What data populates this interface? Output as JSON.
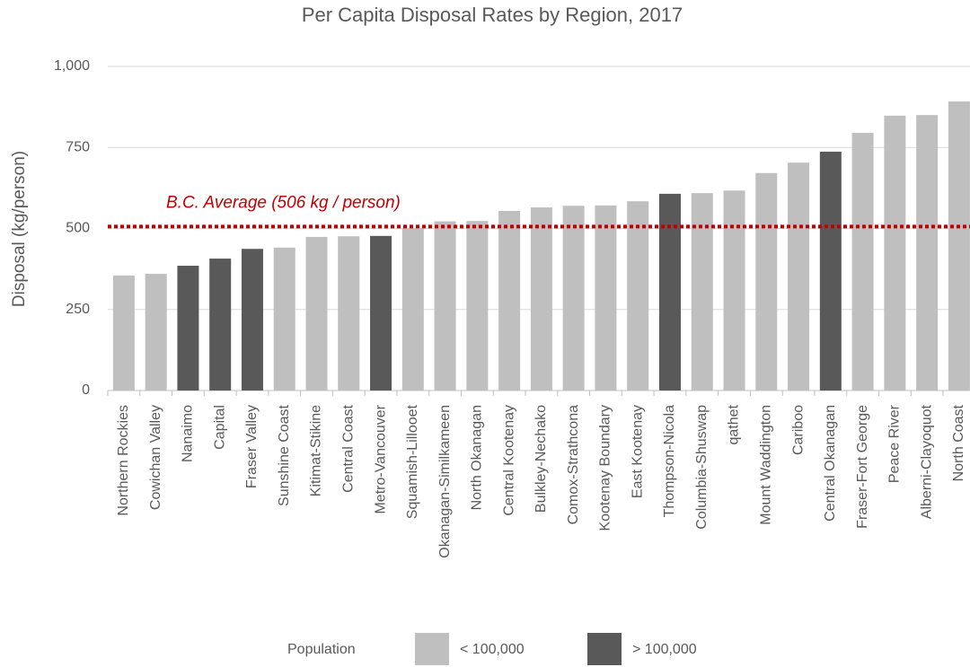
{
  "chart_data": {
    "type": "bar",
    "title": "Per Capita Disposal Rates by Region, 2017",
    "y_label": "Disposal (kg/person)",
    "legend_title": "Population",
    "categories": [
      "Northern Rockies",
      "Cowichan Valley",
      "Nanaimo",
      "Capital",
      "Fraser Valley",
      "Sunshine Coast",
      "Kitimat-Stikine",
      "Central Coast",
      "Metro-Vancouver",
      "Squamish-Lillooet",
      "Okanagan-Similkameen",
      "North Okanagan",
      "Central Kootenay",
      "Bulkley-Nechako",
      "Comox-Strathcona",
      "Kootenay Boundary",
      "East Kootenay",
      "Thompson-Nicola",
      "Columbia-Shuswap",
      "qathet",
      "Mount Waddington",
      "Cariboo",
      "Central Okanagan",
      "Fraser-Fort George",
      "Peace River",
      "Alberni-Clayoquot",
      "North Coast"
    ],
    "series": [
      {
        "name": "< 100,000",
        "color": "#bfbfbf",
        "values": [
          355,
          360,
          null,
          null,
          null,
          441,
          474,
          476,
          null,
          501,
          522,
          523,
          554,
          565,
          570,
          571,
          584,
          null,
          609,
          617,
          671,
          703,
          null,
          795,
          848,
          850,
          892
        ]
      },
      {
        "name": "> 100,000",
        "color": "#595959",
        "values": [
          null,
          null,
          385,
          407,
          437,
          null,
          null,
          null,
          477,
          null,
          null,
          null,
          null,
          null,
          null,
          null,
          null,
          607,
          null,
          null,
          null,
          null,
          737,
          null,
          null,
          null,
          null
        ]
      }
    ],
    "reference_line": {
      "value": 506,
      "label": "B.C. Average (506 kg / person)",
      "color": "#c00000"
    },
    "ylim": [
      0,
      1000
    ],
    "yticks": [
      0,
      250,
      500,
      750,
      {
        "value": 1000,
        "label": "1,000"
      }
    ],
    "grid": true,
    "legend": "bottom"
  }
}
